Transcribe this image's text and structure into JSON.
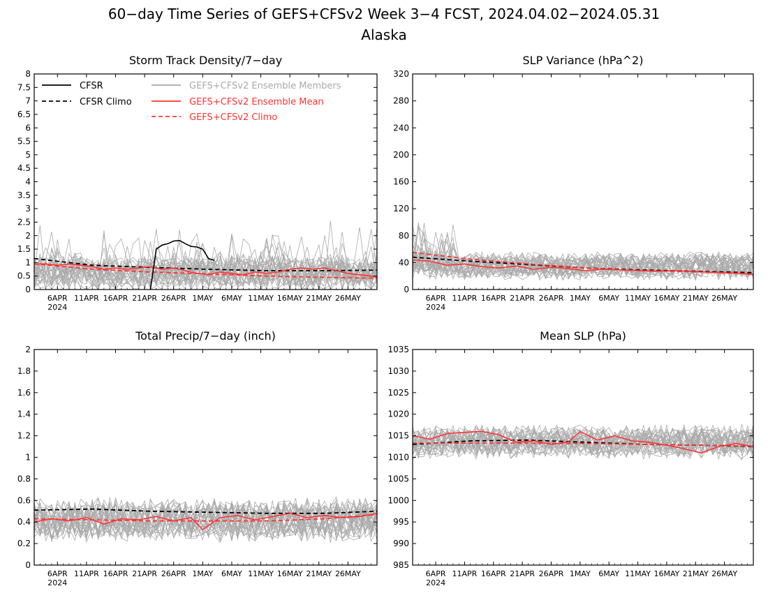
{
  "figure": {
    "title_line1": "60−day Time Series of GEFS+CFSv2 Week 3−4 FCST, 2024.04.02−2024.05.31",
    "title_line2": "Alaska"
  },
  "colors": {
    "observed": "#000000",
    "members": "#aaaaaa",
    "ensemble_mean": "#ff3333",
    "frame": "#000000"
  },
  "legend": {
    "items": [
      {
        "label": "CFSR",
        "color": "#000000",
        "style": "solid"
      },
      {
        "label": "CFSR Climo",
        "color": "#000000",
        "style": "dashed"
      },
      {
        "label": "GEFS+CFSv2 Ensemble Members",
        "color": "#aaaaaa",
        "style": "solid"
      },
      {
        "label": "GEFS+CFSv2 Ensemble Mean",
        "color": "#ff3333",
        "style": "solid"
      },
      {
        "label": "GEFS+CFSv2 Climo",
        "color": "#ff3333",
        "style": "dashed"
      }
    ],
    "placement": "top-left inside Storm Track Density panel"
  },
  "x_axis": {
    "start_date": "2024-04-02",
    "end_date": "2024-05-31",
    "tick_labels": [
      "6APR",
      "11APR",
      "16APR",
      "21APR",
      "26APR",
      "1MAY",
      "6MAY",
      "11MAY",
      "16MAY",
      "21MAY",
      "26MAY"
    ],
    "tick_dates": [
      "2024-04-06",
      "2024-04-11",
      "2024-04-16",
      "2024-04-21",
      "2024-04-26",
      "2024-05-01",
      "2024-05-06",
      "2024-05-11",
      "2024-05-16",
      "2024-05-21",
      "2024-05-26"
    ],
    "year_label": "2024"
  },
  "chart_data": [
    {
      "type": "line",
      "title": "Storm Track Density/7−day",
      "ylim": [
        0,
        8
      ],
      "yticks": [
        0,
        0.5,
        1,
        1.5,
        2,
        2.5,
        3,
        3.5,
        4,
        4.5,
        5,
        5.5,
        6,
        6.5,
        7,
        7.5,
        8
      ],
      "ytick_labels": [
        "0",
        "0.5",
        "1",
        "1.5",
        "2",
        "2.5",
        "3",
        "3.5",
        "4",
        "4.5",
        "5",
        "5.5",
        "6",
        "6.5",
        "7",
        "7.5",
        "8"
      ],
      "has_legend": true,
      "members": {
        "count": 30,
        "base": 0.6,
        "spread": 0.7,
        "seed": 11
      },
      "series": [
        {
          "name": "CFSR Climo",
          "style": "dashed",
          "color": "#000000",
          "x": [
            "2024-04-02",
            "2024-04-12",
            "2024-04-22",
            "2024-05-02",
            "2024-05-12",
            "2024-05-22",
            "2024-05-31"
          ],
          "y": [
            1.15,
            0.9,
            0.82,
            0.75,
            0.7,
            0.7,
            0.72
          ]
        },
        {
          "name": "GEFS+CFSv2 Climo",
          "style": "dashed",
          "color": "#ff3333",
          "x": [
            "2024-04-02",
            "2024-04-12",
            "2024-04-22",
            "2024-05-02",
            "2024-05-12",
            "2024-05-22",
            "2024-05-31"
          ],
          "y": [
            0.95,
            0.75,
            0.65,
            0.58,
            0.5,
            0.45,
            0.42
          ]
        },
        {
          "name": "GEFS+CFSv2 Ensemble Mean",
          "style": "solid",
          "color": "#ff3333",
          "x": [
            "2024-04-02",
            "2024-04-04",
            "2024-04-06",
            "2024-04-08",
            "2024-04-10",
            "2024-04-12",
            "2024-04-14",
            "2024-04-16",
            "2024-04-18",
            "2024-04-20",
            "2024-04-22",
            "2024-04-24",
            "2024-04-26",
            "2024-04-28",
            "2024-04-30",
            "2024-05-02",
            "2024-05-04",
            "2024-05-06",
            "2024-05-08",
            "2024-05-10",
            "2024-05-12",
            "2024-05-14",
            "2024-05-16",
            "2024-05-18",
            "2024-05-20",
            "2024-05-22",
            "2024-05-24",
            "2024-05-26",
            "2024-05-28",
            "2024-05-30",
            "2024-05-31"
          ],
          "y": [
            0.95,
            0.95,
            0.9,
            0.95,
            0.9,
            0.85,
            0.75,
            0.8,
            0.75,
            0.8,
            0.85,
            0.75,
            0.8,
            0.7,
            0.6,
            0.55,
            0.65,
            0.6,
            0.55,
            0.65,
            0.6,
            0.65,
            0.75,
            0.8,
            0.75,
            0.8,
            0.7,
            0.6,
            0.55,
            0.5,
            0.45
          ]
        },
        {
          "name": "CFSR",
          "style": "solid",
          "color": "#000000",
          "x": [
            "2024-04-22",
            "2024-04-23",
            "2024-04-24",
            "2024-04-25",
            "2024-04-26",
            "2024-04-27",
            "2024-04-28",
            "2024-04-29",
            "2024-04-30",
            "2024-05-01",
            "2024-05-02",
            "2024-05-03"
          ],
          "y": [
            0.0,
            1.5,
            1.65,
            1.7,
            1.8,
            1.82,
            1.7,
            1.6,
            1.58,
            1.5,
            1.15,
            1.08
          ]
        }
      ]
    },
    {
      "type": "line",
      "title": "SLP Variance (hPa^2)",
      "ylim": [
        0,
        320
      ],
      "yticks": [
        0,
        40,
        80,
        120,
        160,
        200,
        240,
        280,
        320
      ],
      "ytick_labels": [
        "0",
        "40",
        "80",
        "120",
        "160",
        "200",
        "240",
        "280",
        "320"
      ],
      "has_legend": false,
      "members": {
        "count": 30,
        "base": 35,
        "spread": 22,
        "seed": 23
      },
      "series": [
        {
          "name": "CFSR Climo",
          "style": "dashed",
          "color": "#000000",
          "x": [
            "2024-04-02",
            "2024-04-12",
            "2024-04-22",
            "2024-05-02",
            "2024-05-12",
            "2024-05-22",
            "2024-05-31"
          ],
          "y": [
            48,
            42,
            37,
            32,
            29,
            27,
            25
          ]
        },
        {
          "name": "GEFS+CFSv2 Climo",
          "style": "dashed",
          "color": "#ff3333",
          "x": [
            "2024-04-02",
            "2024-04-12",
            "2024-04-22",
            "2024-05-02",
            "2024-05-12",
            "2024-05-22",
            "2024-05-31"
          ],
          "y": [
            55,
            45,
            38,
            32,
            28,
            26,
            23
          ]
        },
        {
          "name": "GEFS+CFSv2 Ensemble Mean",
          "style": "solid",
          "color": "#ff3333",
          "x": [
            "2024-04-02",
            "2024-04-05",
            "2024-04-08",
            "2024-04-11",
            "2024-04-14",
            "2024-04-17",
            "2024-04-20",
            "2024-04-23",
            "2024-04-26",
            "2024-04-29",
            "2024-05-02",
            "2024-05-05",
            "2024-05-08",
            "2024-05-11",
            "2024-05-14",
            "2024-05-17",
            "2024-05-20",
            "2024-05-23",
            "2024-05-26",
            "2024-05-29",
            "2024-05-31"
          ],
          "y": [
            44,
            42,
            36,
            38,
            34,
            32,
            35,
            30,
            33,
            31,
            28,
            30,
            29,
            28,
            27,
            28,
            27,
            26,
            25,
            24,
            22
          ]
        }
      ]
    },
    {
      "type": "line",
      "title": "Total Precip/7−day (inch)",
      "ylim": [
        0,
        2
      ],
      "yticks": [
        0,
        0.2,
        0.4,
        0.6,
        0.8,
        1,
        1.2,
        1.4,
        1.6,
        1.8,
        2
      ],
      "ytick_labels": [
        "0",
        "0.2",
        "0.4",
        "0.6",
        "0.8",
        "1",
        "1.2",
        "1.4",
        "1.6",
        "1.8",
        "2"
      ],
      "has_legend": false,
      "members": {
        "count": 30,
        "base": 0.42,
        "spread": 0.22,
        "seed": 37
      },
      "series": [
        {
          "name": "CFSR Climo",
          "style": "dashed",
          "color": "#000000",
          "x": [
            "2024-04-02",
            "2024-04-12",
            "2024-04-22",
            "2024-05-02",
            "2024-05-12",
            "2024-05-22",
            "2024-05-31"
          ],
          "y": [
            0.51,
            0.52,
            0.5,
            0.49,
            0.48,
            0.48,
            0.5
          ]
        },
        {
          "name": "GEFS+CFSv2 Climo",
          "style": "dashed",
          "color": "#ff3333",
          "x": [
            "2024-04-02",
            "2024-04-12",
            "2024-04-22",
            "2024-05-02",
            "2024-05-12",
            "2024-05-22",
            "2024-05-31"
          ],
          "y": [
            0.43,
            0.42,
            0.41,
            0.41,
            0.41,
            0.43,
            0.47
          ]
        },
        {
          "name": "GEFS+CFSv2 Ensemble Mean",
          "style": "solid",
          "color": "#ff3333",
          "x": [
            "2024-04-02",
            "2024-04-05",
            "2024-04-08",
            "2024-04-11",
            "2024-04-14",
            "2024-04-17",
            "2024-04-20",
            "2024-04-23",
            "2024-04-26",
            "2024-04-29",
            "2024-05-01",
            "2024-05-04",
            "2024-05-07",
            "2024-05-10",
            "2024-05-13",
            "2024-05-16",
            "2024-05-19",
            "2024-05-22",
            "2024-05-25",
            "2024-05-28",
            "2024-05-31"
          ],
          "y": [
            0.4,
            0.43,
            0.41,
            0.44,
            0.38,
            0.43,
            0.42,
            0.45,
            0.41,
            0.44,
            0.33,
            0.44,
            0.46,
            0.42,
            0.45,
            0.48,
            0.44,
            0.46,
            0.44,
            0.45,
            0.48
          ]
        }
      ]
    },
    {
      "type": "line",
      "title": "Mean SLP (hPa)",
      "ylim": [
        985,
        1035
      ],
      "yticks": [
        985,
        990,
        995,
        1000,
        1005,
        1010,
        1015,
        1020,
        1025,
        1030,
        1035
      ],
      "ytick_labels": [
        "985",
        "990",
        "995",
        "1000",
        "1005",
        "1010",
        "1015",
        "1020",
        "1025",
        "1030",
        "1035"
      ],
      "has_legend": false,
      "members": {
        "count": 30,
        "base": 1013.5,
        "spread": 4.2,
        "seed": 51
      },
      "series": [
        {
          "name": "CFSR Climo",
          "style": "dashed",
          "color": "#000000",
          "x": [
            "2024-04-02",
            "2024-04-12",
            "2024-04-22",
            "2024-05-02",
            "2024-05-12",
            "2024-05-22",
            "2024-05-31"
          ],
          "y": [
            1013.0,
            1013.8,
            1014.0,
            1013.5,
            1013.0,
            1012.8,
            1012.5
          ]
        },
        {
          "name": "GEFS+CFSv2 Climo",
          "style": "dashed",
          "color": "#ff3333",
          "x": [
            "2024-04-02",
            "2024-04-12",
            "2024-04-22",
            "2024-05-02",
            "2024-05-12",
            "2024-05-22",
            "2024-05-31"
          ],
          "y": [
            1013.3,
            1013.3,
            1013.3,
            1013.2,
            1013.0,
            1012.8,
            1012.6
          ]
        },
        {
          "name": "GEFS+CFSv2 Ensemble Mean",
          "style": "solid",
          "color": "#ff3333",
          "x": [
            "2024-04-02",
            "2024-04-05",
            "2024-04-08",
            "2024-04-11",
            "2024-04-14",
            "2024-04-17",
            "2024-04-20",
            "2024-04-23",
            "2024-04-26",
            "2024-04-29",
            "2024-05-01",
            "2024-05-04",
            "2024-05-07",
            "2024-05-10",
            "2024-05-13",
            "2024-05-16",
            "2024-05-19",
            "2024-05-22",
            "2024-05-25",
            "2024-05-28",
            "2024-05-31"
          ],
          "y": [
            1015.0,
            1014.2,
            1015.5,
            1015.8,
            1016.0,
            1015.2,
            1013.5,
            1013.8,
            1013.0,
            1013.6,
            1016.0,
            1014.0,
            1015.0,
            1013.8,
            1013.5,
            1012.8,
            1012.0,
            1011.0,
            1012.5,
            1013.2,
            1012.5
          ]
        }
      ]
    }
  ]
}
